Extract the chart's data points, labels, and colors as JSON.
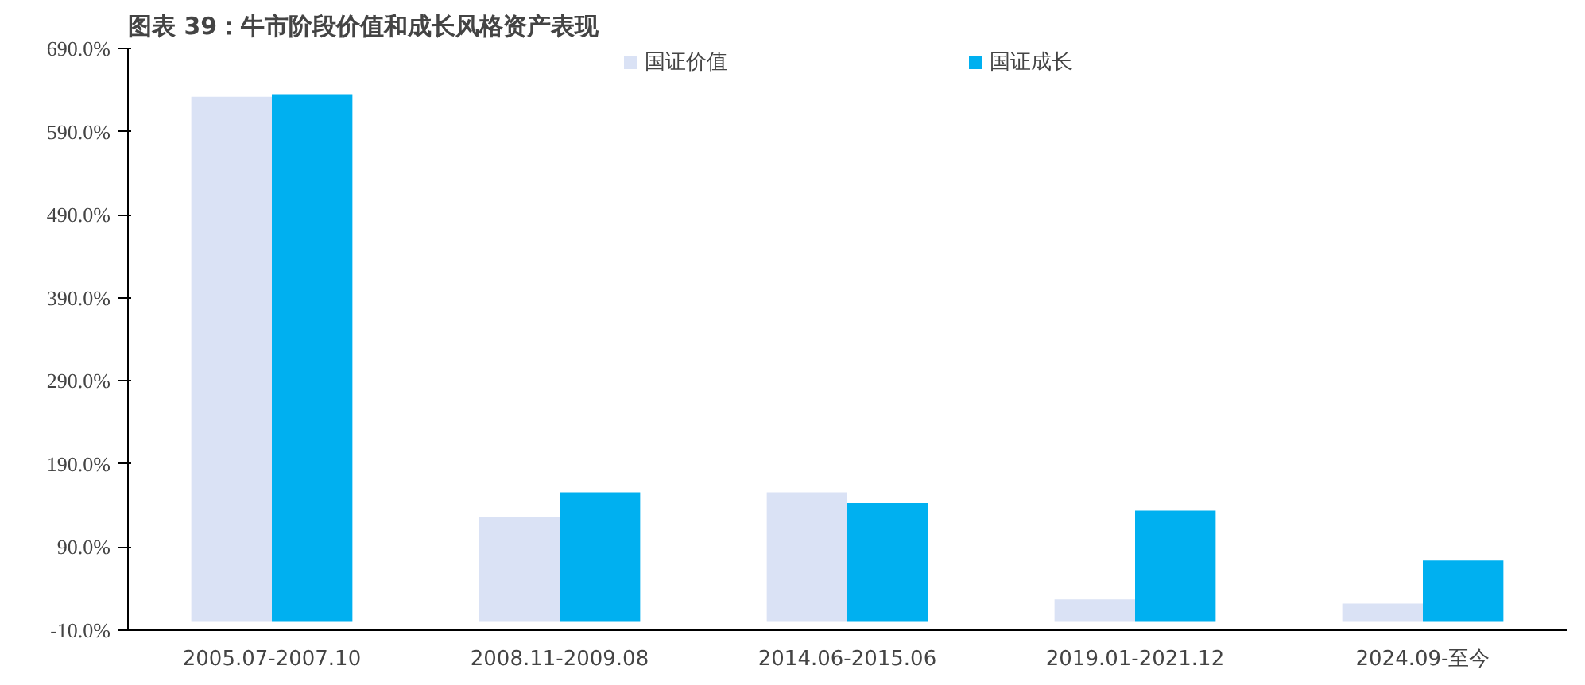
{
  "chart_data": {
    "type": "bar",
    "title": "图表 39：牛市阶段价值和成长风格资产表现",
    "categories": [
      "2005.07-2007.10",
      "2008.11-2009.08",
      "2014.06-2015.06",
      "2019.01-2021.12",
      "2024.09-至今"
    ],
    "series": [
      {
        "name": "国证价值",
        "color": "#dae2f5",
        "values": [
          632,
          126,
          156,
          27,
          22
        ]
      },
      {
        "name": "国证成长",
        "color": "#00b0f0",
        "values": [
          635,
          156,
          143,
          134,
          74
        ]
      }
    ],
    "ylim": [
      -10,
      690
    ],
    "yticks": [
      {
        "value": -10,
        "label": "-10.0%"
      },
      {
        "value": 90,
        "label": "90.0%"
      },
      {
        "value": 190,
        "label": "190.0%"
      },
      {
        "value": 290,
        "label": "290.0%"
      },
      {
        "value": 390,
        "label": "390.0%"
      },
      {
        "value": 490,
        "label": "490.0%"
      },
      {
        "value": 590,
        "label": "590.0%"
      },
      {
        "value": 690,
        "label": "690.0%"
      }
    ],
    "grid": false,
    "legend": "top"
  }
}
